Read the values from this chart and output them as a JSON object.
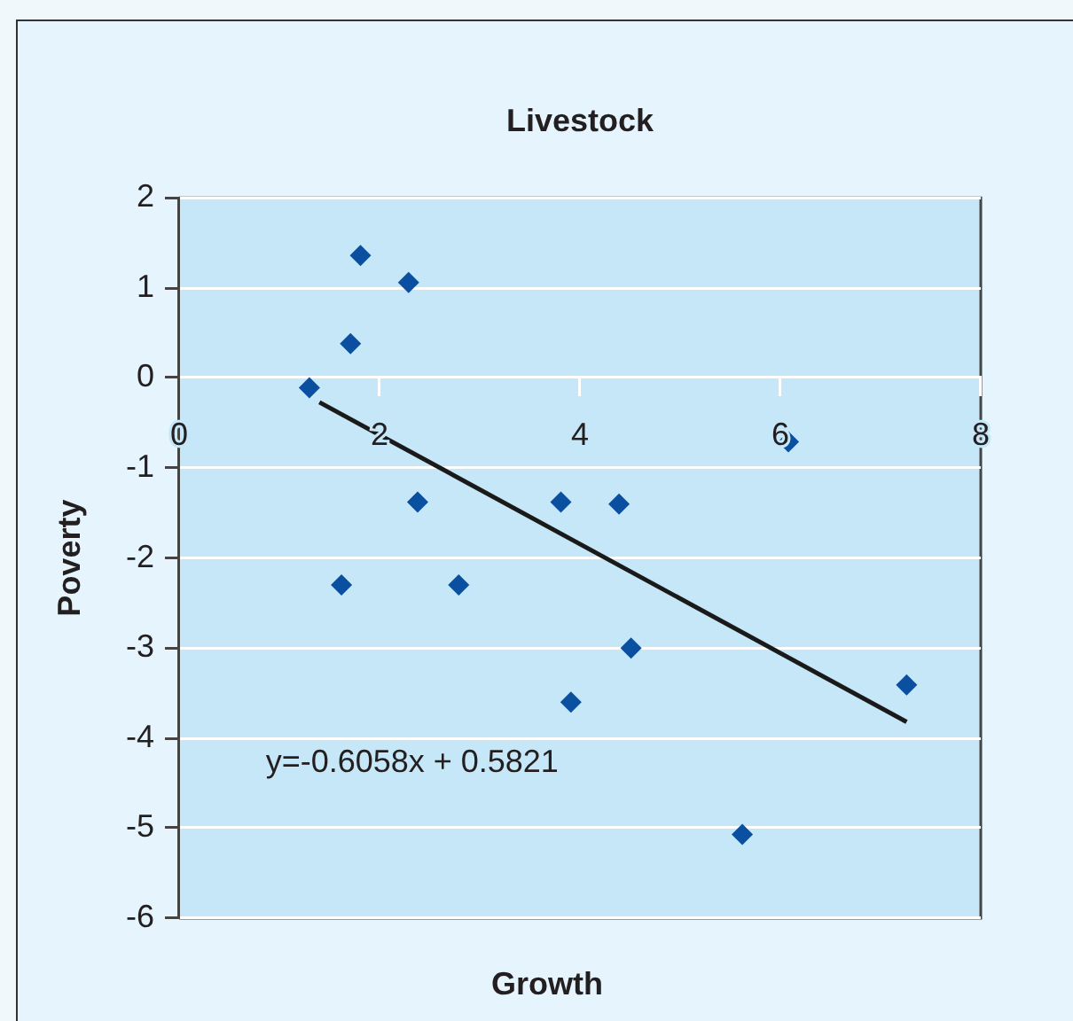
{
  "chart_data": {
    "type": "scatter",
    "title": "Livestock",
    "xlabel": "Growth",
    "ylabel": "Poverty",
    "x": [
      1.3,
      1.62,
      1.71,
      1.81,
      2.29,
      2.38,
      2.79,
      3.81,
      3.91,
      4.39,
      4.51,
      5.62,
      6.08,
      7.26
    ],
    "series": [
      {
        "color": "#0a4fa0",
        "marker": "diamond",
        "values": [
          -0.11,
          -2.3,
          0.38,
          1.36,
          1.06,
          -1.38,
          -2.3,
          -1.38,
          -3.6,
          -1.4,
          -3.0,
          -5.07,
          -0.71,
          -3.41
        ]
      },
      {
        "type": "line",
        "color": "#1a1a1a",
        "marker": "none",
        "x": [
          1.4,
          7.26
        ],
        "values": [
          -0.27,
          -3.82
        ]
      }
    ],
    "xlim": [
      0,
      8
    ],
    "xticks": [
      0,
      2,
      4,
      6,
      8
    ],
    "ylim": [
      -6,
      2
    ],
    "yticks": [
      -6,
      -5,
      -4,
      -3,
      -2,
      -1,
      0,
      1,
      2
    ],
    "grid": "y",
    "annotations": [
      "y=-0.6058x + 0.5821"
    ]
  }
}
